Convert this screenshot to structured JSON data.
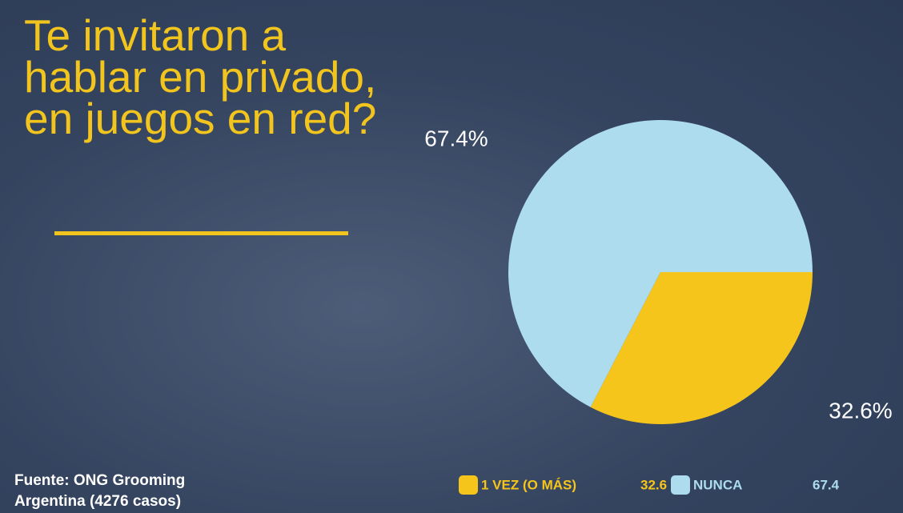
{
  "chart_data": {
    "type": "pie",
    "title": "Te invitaron a hablar en privado, en juegos en red?",
    "categories": [
      "1 VEZ (O MÁS)",
      "NUNCA"
    ],
    "values": [
      32.6,
      67.4
    ],
    "value_labels": [
      "32.6%",
      "67.4%"
    ],
    "colors": [
      "#f6c51b",
      "#acdcee"
    ],
    "legend": "bottom",
    "source": "Fuente: ONG Grooming Argentina (4276 casos)"
  }
}
